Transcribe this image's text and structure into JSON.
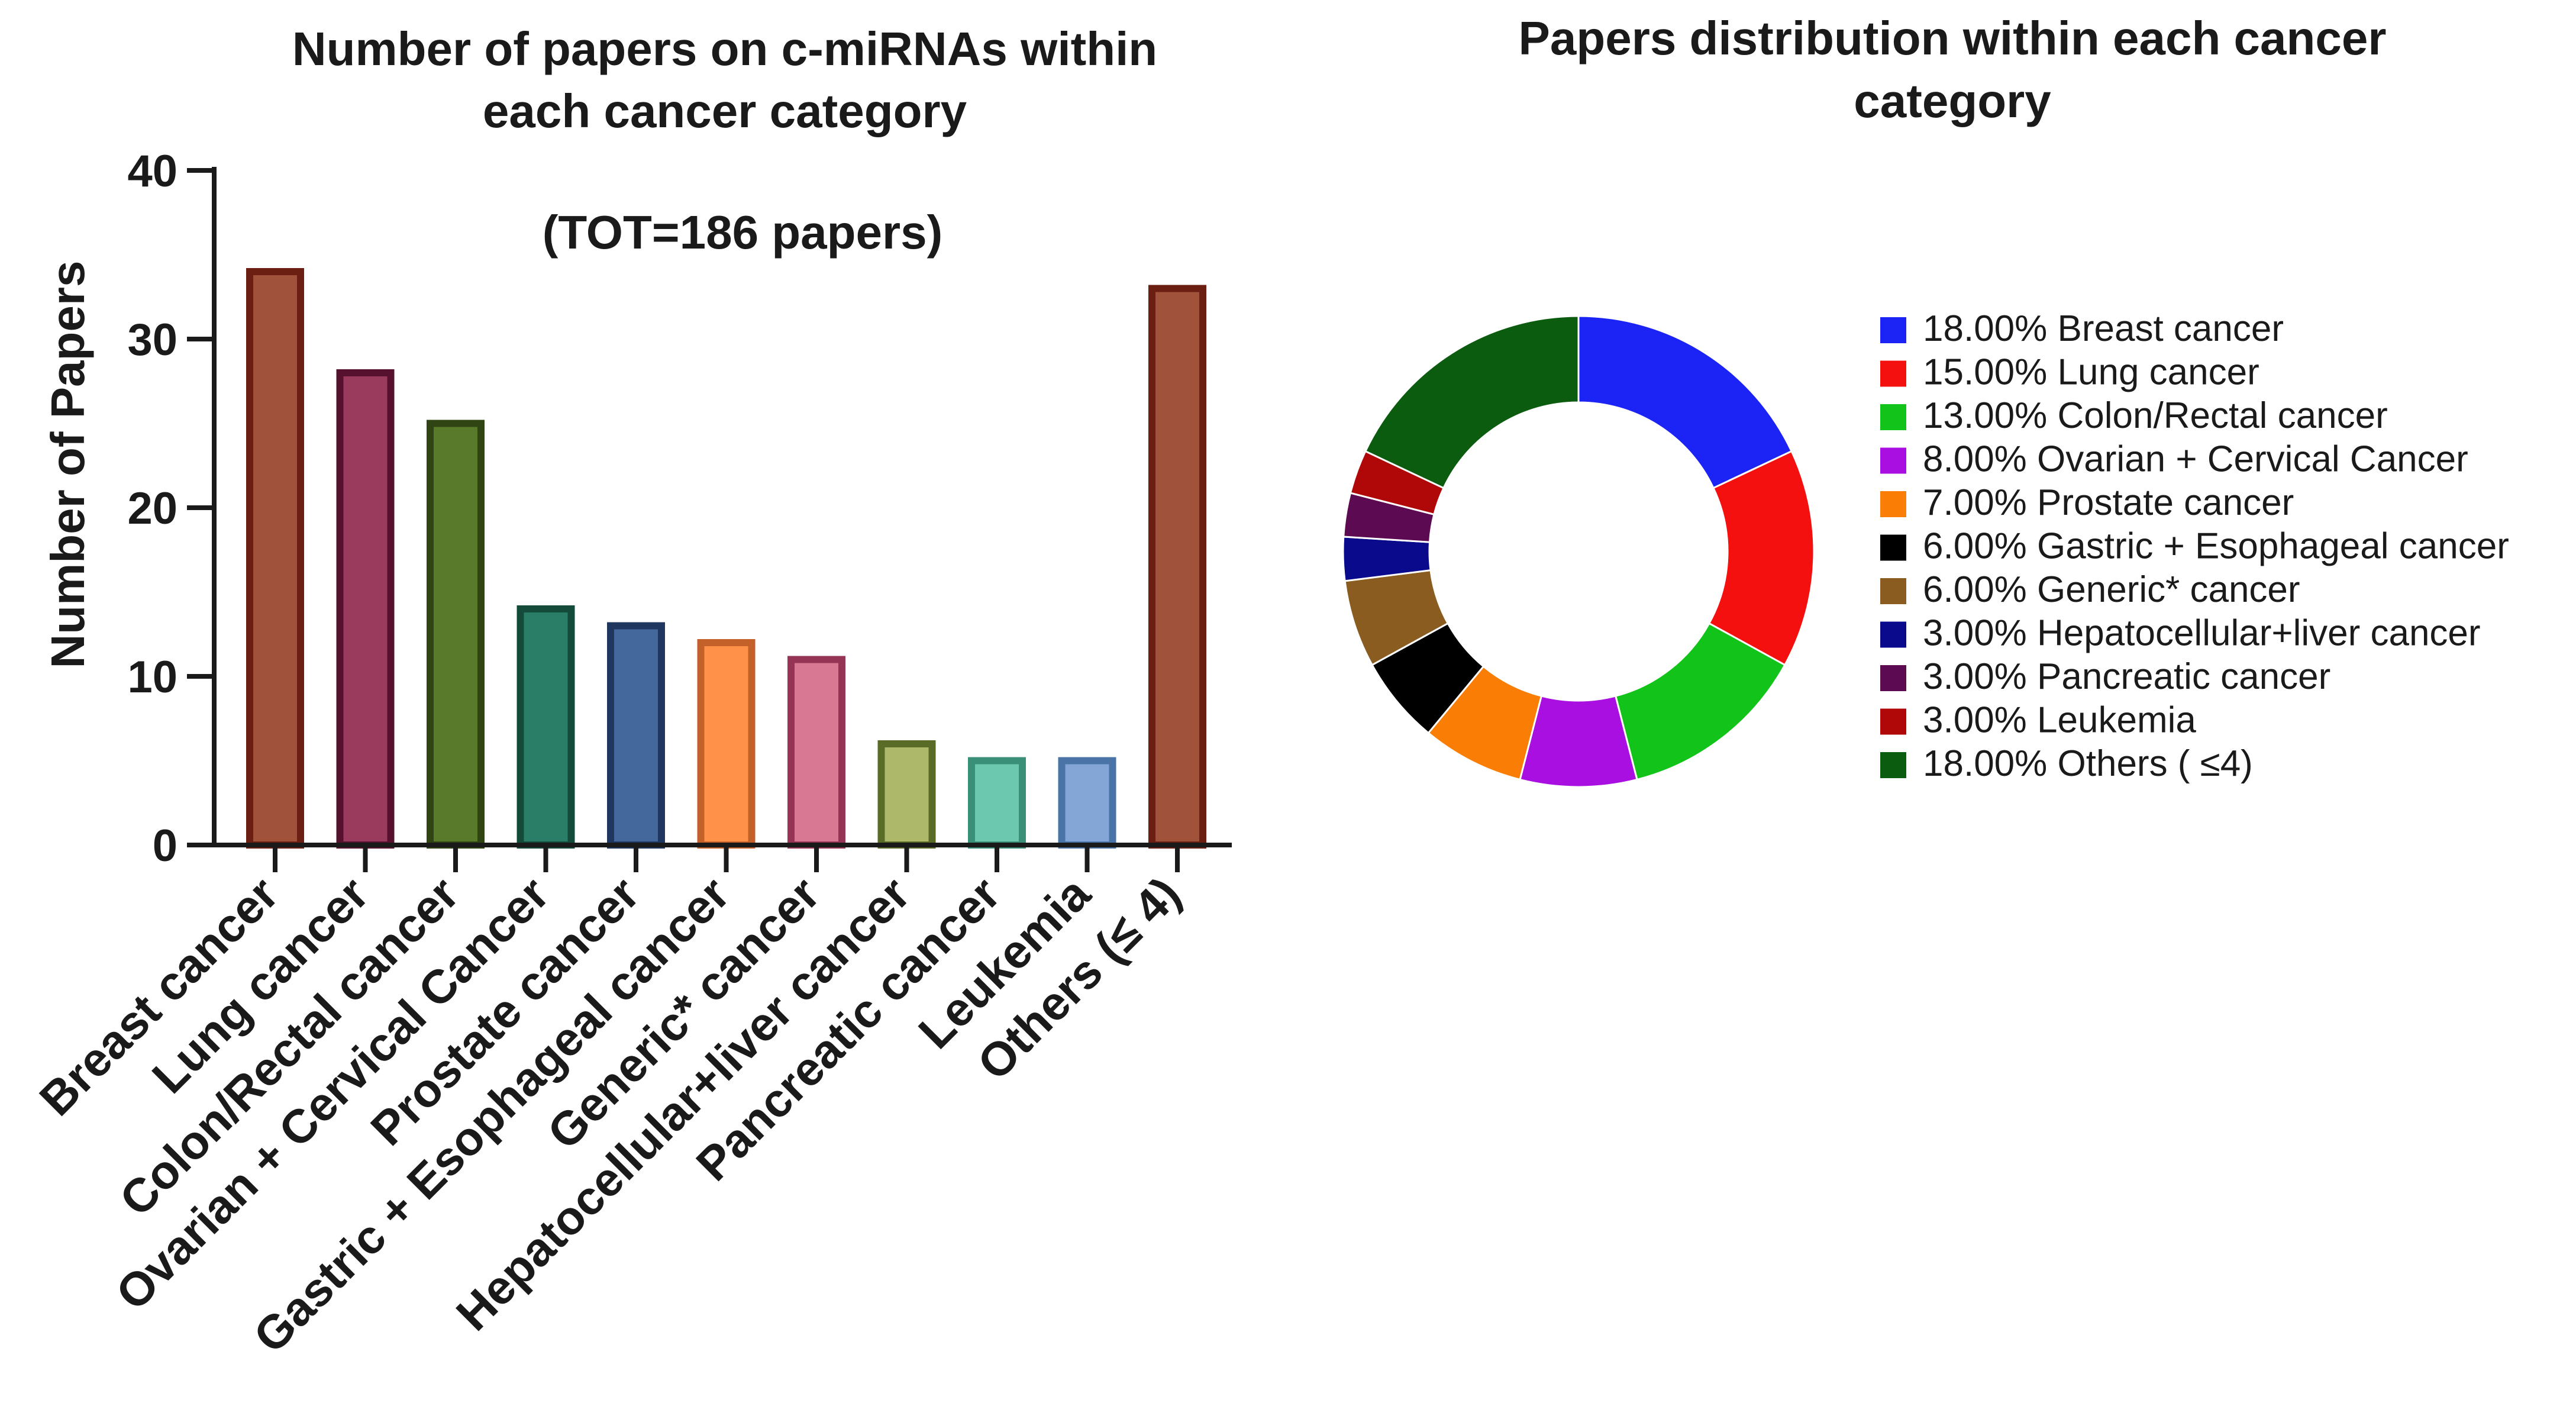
{
  "chart_data": [
    {
      "type": "bar",
      "title_line1": "Number of papers on c-miRNAs within",
      "title_line2": "each cancer category",
      "annotation": "(TOT=186 papers)",
      "xlabel": "",
      "ylabel": "Number of Papers",
      "ylim": [
        0,
        40
      ],
      "yticks": [
        "0",
        "10",
        "20",
        "30",
        "40"
      ],
      "grid": false,
      "categories": [
        "Breast cancer",
        "Lung cancer",
        "Colon/Rectal cancer",
        "Ovarian + Cervical Cancer",
        "Prostate cancer",
        "Gastric + Esophageal cancer",
        "Generic* cancer",
        "Hepatocellular+liver cancer",
        "Pancreatic cancer",
        "Leukemia",
        "Others (≤ 4)"
      ],
      "values": [
        34,
        28,
        25,
        14,
        13,
        12,
        11,
        6,
        5,
        5,
        33
      ],
      "fill_colors": [
        "#a0523a",
        "#9a3a5c",
        "#587a2a",
        "#2a7d66",
        "#45689c",
        "#ff9148",
        "#d97892",
        "#adb86a",
        "#6cc9b0",
        "#83a6d6",
        "#a0523a"
      ],
      "stroke_colors": [
        "#6b1f12",
        "#55112d",
        "#2f4412",
        "#134a3a",
        "#1f365e",
        "#c4612a",
        "#953455",
        "#5a6b28",
        "#3a8f78",
        "#4a73a8",
        "#6b1f12"
      ]
    },
    {
      "type": "pie",
      "title_line1": "Papers distribution within each cancer",
      "title_line2": "category",
      "legend_position": "right",
      "slices": [
        {
          "label": "18.00%  Breast cancer",
          "value": 18,
          "color": "#1c24f5"
        },
        {
          "label": "15.00%  Lung cancer",
          "value": 15,
          "color": "#f51010"
        },
        {
          "label": "13.00%  Colon/Rectal cancer",
          "value": 13,
          "color": "#12c41a"
        },
        {
          "label": "8.00%  Ovarian + Cervical Cancer",
          "value": 8,
          "color": "#a80fe0"
        },
        {
          "label": "7.00%  Prostate cancer",
          "value": 7,
          "color": "#fa7d06"
        },
        {
          "label": "6.00%  Gastric + Esophageal cancer",
          "value": 6,
          "color": "#000000"
        },
        {
          "label": "6.00%  Generic* cancer",
          "value": 6,
          "color": "#8a5c20"
        },
        {
          "label": "3.00%  Hepatocellular+liver cancer",
          "value": 3,
          "color": "#0a0a8c"
        },
        {
          "label": "3.00%  Pancreatic cancer",
          "value": 3,
          "color": "#5c0a52"
        },
        {
          "label": "3.00%  Leukemia",
          "value": 3,
          "color": "#b00808"
        },
        {
          "label": "18.00%  Others ( ≤4)",
          "value": 18,
          "color": "#0c5c10"
        }
      ]
    }
  ]
}
